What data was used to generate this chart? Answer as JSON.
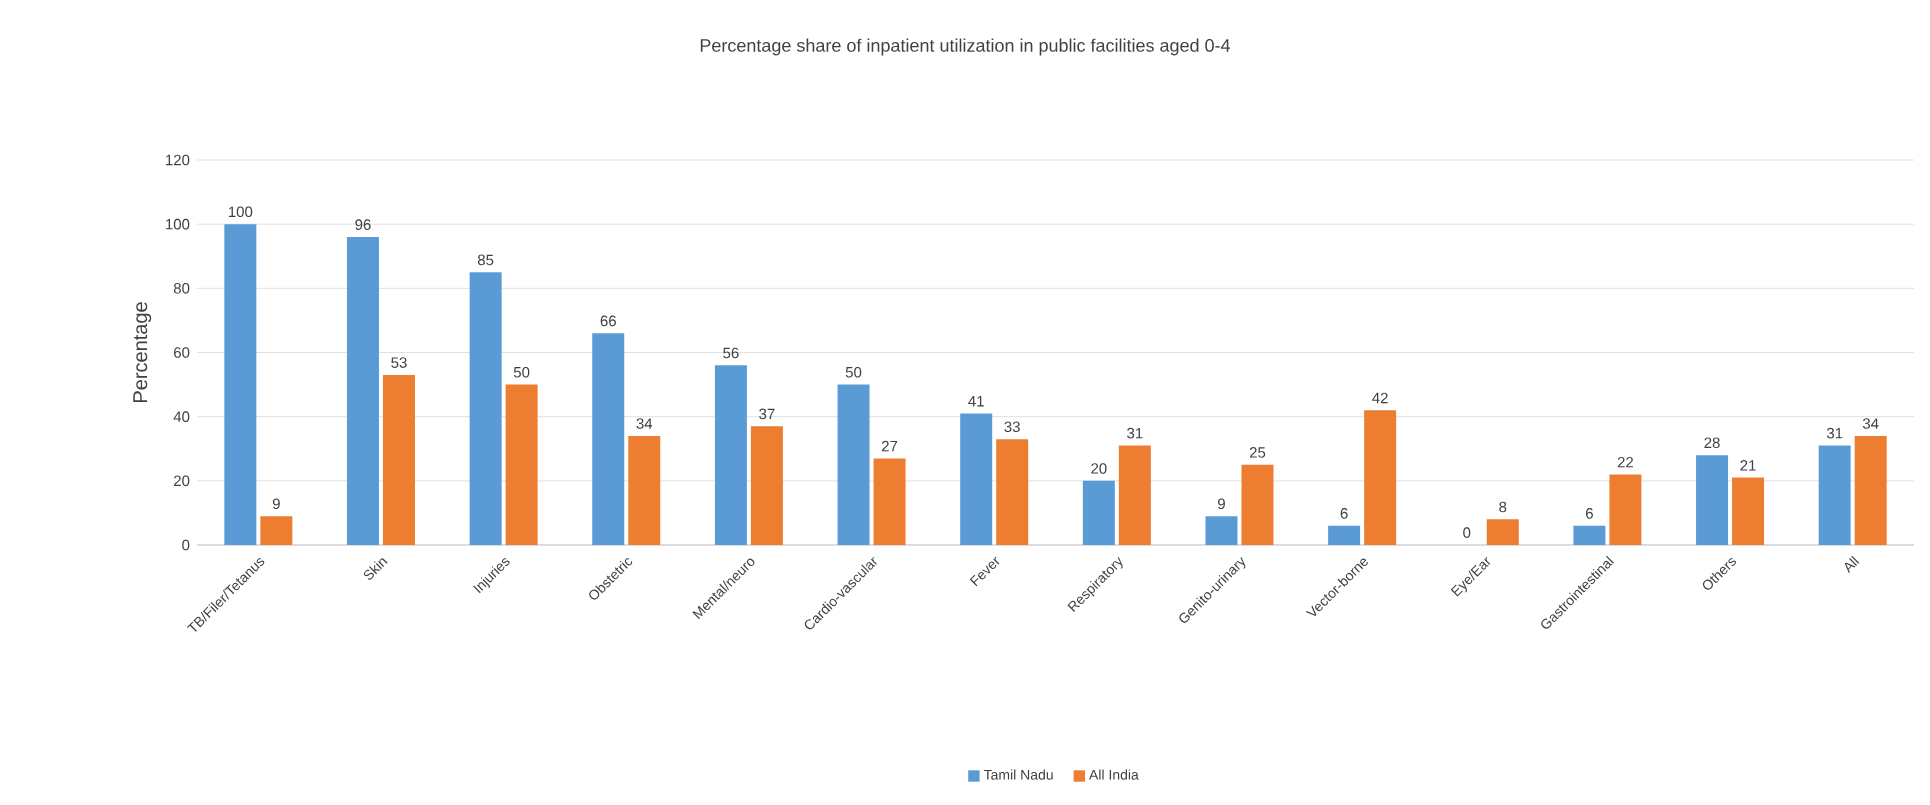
{
  "chart_data": {
    "type": "bar",
    "title": "Percentage share of inpatient utilization in public facilities aged 0-4",
    "ylabel": "Percentage",
    "categories": [
      "TB/Filer/Tetanus",
      "Skin",
      "Injuries",
      "Obstetric",
      "Mental/neuro",
      "Cardio-vascular",
      "Fever",
      "Respiratory",
      "Genito-urinary",
      "Vector-borne",
      "Eye/Ear",
      "Gastrointestinal",
      "Others",
      "All"
    ],
    "series": [
      {
        "name": "Tamil Nadu",
        "color": "#5b9bd5",
        "values": [
          100,
          96,
          85,
          66,
          56,
          50,
          41,
          20,
          9,
          6,
          0,
          6,
          28,
          31
        ]
      },
      {
        "name": "All India",
        "color": "#ed7d31",
        "values": [
          9,
          53,
          50,
          34,
          37,
          27,
          33,
          31,
          25,
          42,
          8,
          22,
          21,
          34
        ]
      }
    ],
    "ylim": [
      0,
      120
    ],
    "yticks": [
      0,
      20,
      40,
      60,
      80,
      100,
      120
    ],
    "grid": "y",
    "legend": "bottom",
    "data_labels": true
  }
}
